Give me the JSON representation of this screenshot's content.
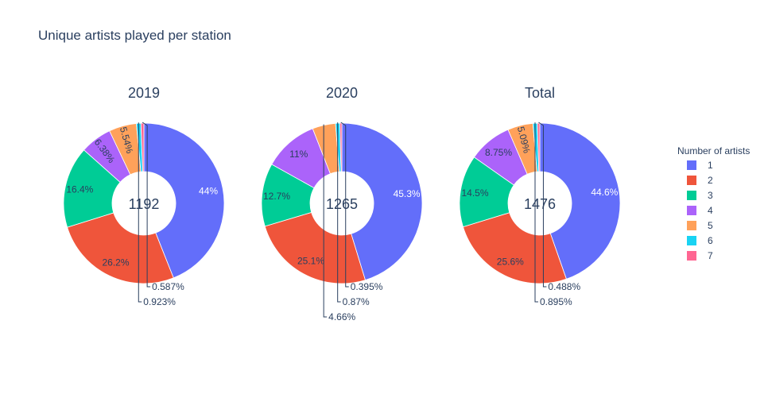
{
  "chart_data": {
    "type": "pie",
    "title": "Unique artists played per station",
    "legend": {
      "title": "Number of artists",
      "position": "right",
      "entries": [
        "1",
        "2",
        "3",
        "4",
        "5",
        "6",
        "7"
      ],
      "colors": [
        "#636efa",
        "#EF553B",
        "#00cc96",
        "#ab63fa",
        "#FFA15A",
        "#19d3f3",
        "#FF6692"
      ]
    },
    "charts": [
      {
        "name": "2019",
        "center_label": "1192",
        "labels": [
          "1",
          "2",
          "3",
          "4",
          "5",
          "6",
          "7"
        ],
        "values": [
          44,
          26.2,
          16.4,
          6.38,
          5.54,
          0.923,
          0.587
        ],
        "text": [
          "44%",
          "26.2%",
          "16.4%",
          "6.38%",
          "5.54%",
          "0.923%",
          "0.587%"
        ]
      },
      {
        "name": "2020",
        "center_label": "1265",
        "labels": [
          "1",
          "2",
          "3",
          "4",
          "5",
          "6",
          "7"
        ],
        "values": [
          45.3,
          25.1,
          12.7,
          11,
          4.66,
          0.87,
          0.395
        ],
        "text": [
          "45.3%",
          "25.1%",
          "12.7%",
          "11%",
          "4.66%",
          "0.87%",
          "0.395%"
        ]
      },
      {
        "name": "Total",
        "center_label": "1476",
        "labels": [
          "1",
          "2",
          "3",
          "4",
          "5",
          "6",
          "7"
        ],
        "values": [
          44.6,
          25.6,
          14.5,
          8.75,
          5.09,
          0.895,
          0.488
        ],
        "text": [
          "44.6%",
          "25.6%",
          "14.5%",
          "8.75%",
          "5.09%",
          "0.895%",
          "0.488%"
        ]
      }
    ]
  }
}
